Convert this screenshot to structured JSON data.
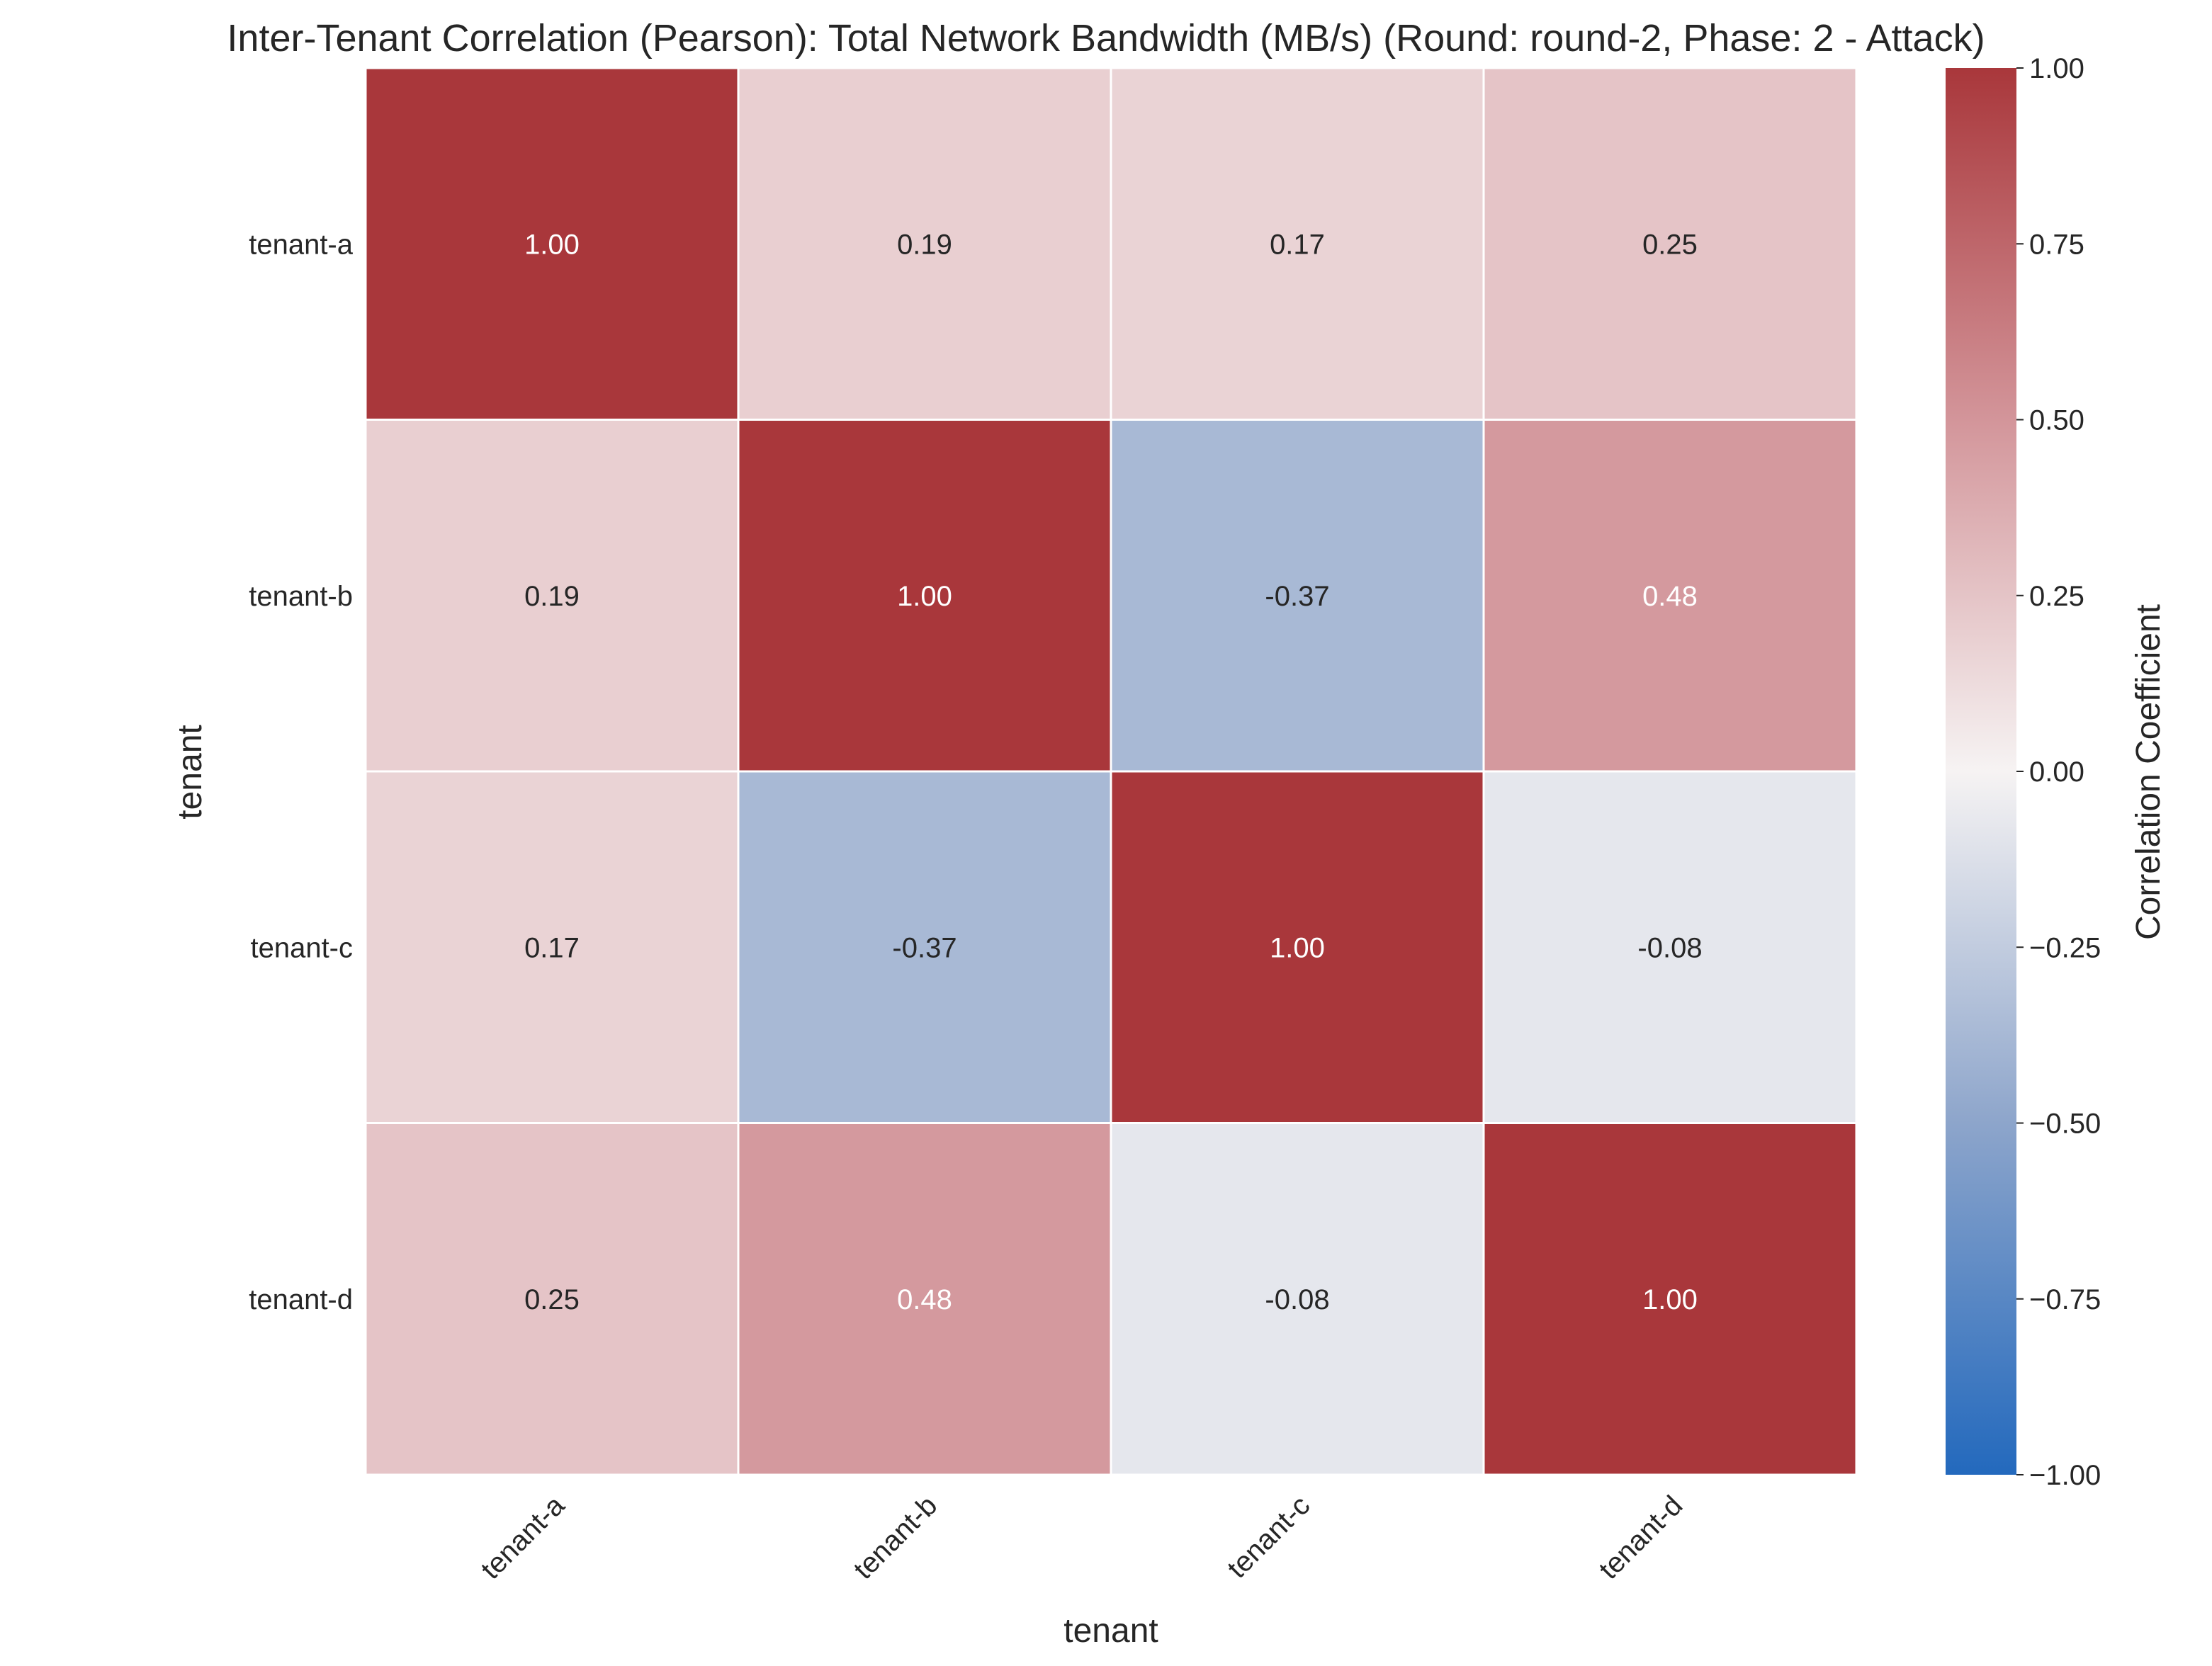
{
  "chart_data": {
    "type": "heatmap",
    "title": "Inter-Tenant Correlation (Pearson): Total Network Bandwidth (MB/s) (Round: round-2, Phase: 2 - Attack)",
    "xlabel": "tenant",
    "ylabel": "tenant",
    "x_categories": [
      "tenant-a",
      "tenant-b",
      "tenant-c",
      "tenant-d"
    ],
    "y_categories": [
      "tenant-a",
      "tenant-b",
      "tenant-c",
      "tenant-d"
    ],
    "values": [
      [
        1.0,
        0.19,
        0.17,
        0.25
      ],
      [
        0.19,
        1.0,
        -0.37,
        0.48
      ],
      [
        0.17,
        -0.37,
        1.0,
        -0.08
      ],
      [
        0.25,
        0.48,
        -0.08,
        1.0
      ]
    ],
    "value_format": "0.00",
    "colorbar": {
      "label": "Correlation Coefficient",
      "range": [
        -1.0,
        1.0
      ],
      "ticks": [
        "1.00",
        "0.75",
        "0.50",
        "0.25",
        "0.00",
        "−0.25",
        "−0.50",
        "−0.75",
        "−1.00"
      ],
      "colormap": "vlag",
      "colors": {
        "low": "#2369bd",
        "mid": "#f6f3f3",
        "high": "#a9373b"
      }
    },
    "grid": false
  }
}
